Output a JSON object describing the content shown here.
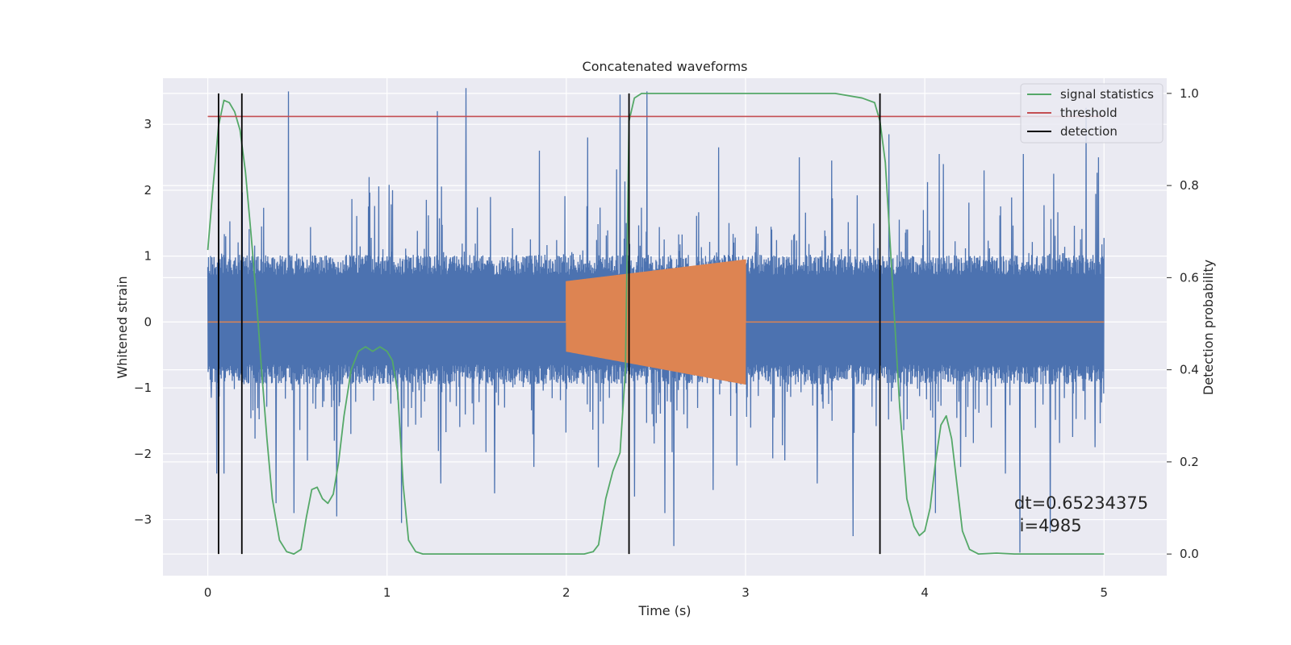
{
  "chart_data": {
    "type": "line",
    "title": "Concatenated waveforms",
    "xlabel": "Time (s)",
    "ylabel": "Whitened strain",
    "ylabel_right": "Detection probability",
    "xlim": [
      -0.25,
      5.35
    ],
    "ylim": [
      -3.85,
      3.7
    ],
    "ylim_right": [
      -0.047,
      1.033
    ],
    "x_ticks": [
      0,
      1,
      2,
      3,
      4,
      5
    ],
    "x_tick_labels": [
      "0",
      "1",
      "2",
      "3",
      "4",
      "5"
    ],
    "y_ticks": [
      -3,
      -2,
      -1,
      0,
      1,
      2,
      3
    ],
    "y_tick_labels": [
      "−3",
      "−2",
      "−1",
      "0",
      "1",
      "2",
      "3"
    ],
    "y_right_ticks": [
      0.0,
      0.2,
      0.4,
      0.6,
      0.8,
      1.0
    ],
    "y_right_tick_labels": [
      "0.0",
      "0.2",
      "0.4",
      "0.6",
      "0.8",
      "1.0"
    ],
    "grid": true,
    "legend_position": "top-right",
    "legend": [
      {
        "label": "signal statistics",
        "color": "#55a868"
      },
      {
        "label": "threshold",
        "color": "#c44e52"
      },
      {
        "label": "detection",
        "color": "#000000"
      }
    ],
    "series": [
      {
        "name": "whitened strain (noise)",
        "axis": "left",
        "color": "#4c72b0",
        "x_range": [
          0,
          5
        ],
        "band": [
          -0.65,
          0.72
        ],
        "peaks_high": [
          [
            0.02,
            1.65
          ],
          [
            0.1,
            1.3
          ],
          [
            0.3,
            1.45
          ],
          [
            0.38,
            3.2
          ],
          [
            0.45,
            3.5
          ],
          [
            0.72,
            2.3
          ],
          [
            0.9,
            2.2
          ],
          [
            1.03,
            2.0
          ],
          [
            1.28,
            3.2
          ],
          [
            1.44,
            3.55
          ],
          [
            1.6,
            2.1
          ],
          [
            1.85,
            2.6
          ],
          [
            2.12,
            2.8
          ],
          [
            2.3,
            3.45
          ],
          [
            2.45,
            3.5
          ],
          [
            2.6,
            2.2
          ],
          [
            2.85,
            2.65
          ],
          [
            3.06,
            1.45
          ],
          [
            3.3,
            2.5
          ],
          [
            3.48,
            2.45
          ],
          [
            3.6,
            2.6
          ],
          [
            3.8,
            2.85
          ],
          [
            4.08,
            2.55
          ],
          [
            4.33,
            2.3
          ],
          [
            4.55,
            2.55
          ],
          [
            4.72,
            2.25
          ],
          [
            4.9,
            3.25
          ],
          [
            4.97,
            2.5
          ]
        ],
        "peaks_low": [
          [
            0.02,
            -1.15
          ],
          [
            0.05,
            -2.3
          ],
          [
            0.09,
            -2.3
          ],
          [
            0.38,
            -2.75
          ],
          [
            0.48,
            -2.9
          ],
          [
            0.72,
            -2.95
          ],
          [
            1.08,
            -3.05
          ],
          [
            1.3,
            -2.45
          ],
          [
            1.6,
            -2.6
          ],
          [
            1.82,
            -2.2
          ],
          [
            2.38,
            -2.65
          ],
          [
            2.55,
            -2.9
          ],
          [
            2.6,
            -3.4
          ],
          [
            2.82,
            -2.55
          ],
          [
            3.22,
            -2.1
          ],
          [
            3.4,
            -2.45
          ],
          [
            3.6,
            -3.25
          ],
          [
            4.06,
            -2.9
          ],
          [
            4.2,
            -2.2
          ],
          [
            4.45,
            -2.3
          ],
          [
            4.53,
            -3.5
          ],
          [
            4.7,
            -3.2
          ],
          [
            4.95,
            -1.9
          ]
        ]
      },
      {
        "name": "injected waveform",
        "axis": "left",
        "color": "#dd8452",
        "x_range": [
          0,
          5
        ],
        "zero_level": 0,
        "chirp": {
          "t_start": 2.0,
          "t_end": 3.0,
          "amp_start": 0.62,
          "amp_end": 0.95,
          "amp_low_start": -0.45,
          "amp_low_end": -0.95
        }
      },
      {
        "name": "signal statistics",
        "axis": "right",
        "color": "#55a868",
        "x": [
          0.0,
          0.03,
          0.06,
          0.09,
          0.12,
          0.15,
          0.18,
          0.21,
          0.24,
          0.27,
          0.3,
          0.33,
          0.36,
          0.4,
          0.44,
          0.48,
          0.52,
          0.55,
          0.58,
          0.61,
          0.64,
          0.67,
          0.7,
          0.73,
          0.76,
          0.8,
          0.84,
          0.88,
          0.92,
          0.96,
          1.0,
          1.03,
          1.06,
          1.09,
          1.12,
          1.16,
          1.2,
          1.5,
          2.0,
          2.1,
          2.15,
          2.18,
          2.22,
          2.26,
          2.3,
          2.33,
          2.35,
          2.38,
          2.42,
          2.5,
          3.0,
          3.5,
          3.65,
          3.72,
          3.75,
          3.78,
          3.8,
          3.83,
          3.86,
          3.9,
          3.94,
          3.97,
          4.0,
          4.03,
          4.06,
          4.09,
          4.12,
          4.15,
          4.18,
          4.21,
          4.25,
          4.3,
          4.4,
          4.5,
          5.0
        ],
        "y": [
          0.66,
          0.8,
          0.93,
          0.985,
          0.98,
          0.96,
          0.92,
          0.83,
          0.7,
          0.56,
          0.4,
          0.25,
          0.12,
          0.03,
          0.005,
          0.0,
          0.01,
          0.08,
          0.14,
          0.145,
          0.12,
          0.11,
          0.13,
          0.2,
          0.3,
          0.4,
          0.44,
          0.45,
          0.44,
          0.45,
          0.44,
          0.42,
          0.35,
          0.15,
          0.03,
          0.005,
          0.0,
          0.0,
          0.0,
          0.0,
          0.005,
          0.02,
          0.12,
          0.18,
          0.22,
          0.4,
          0.94,
          0.99,
          1.0,
          1.0,
          1.0,
          1.0,
          0.99,
          0.98,
          0.94,
          0.85,
          0.72,
          0.52,
          0.32,
          0.12,
          0.06,
          0.04,
          0.05,
          0.1,
          0.2,
          0.28,
          0.3,
          0.25,
          0.15,
          0.05,
          0.01,
          0.0,
          0.002,
          0.0,
          0.0
        ]
      },
      {
        "name": "threshold",
        "axis": "right",
        "color": "#c44e52",
        "x": [
          0,
          5
        ],
        "y": [
          0.95,
          0.95
        ]
      }
    ],
    "detections": [
      0.06,
      0.19,
      2.35,
      3.75
    ],
    "detection_range": [
      0.0,
      1.0
    ],
    "annotations": [
      "dt=0.65234375",
      " i=4985"
    ]
  }
}
